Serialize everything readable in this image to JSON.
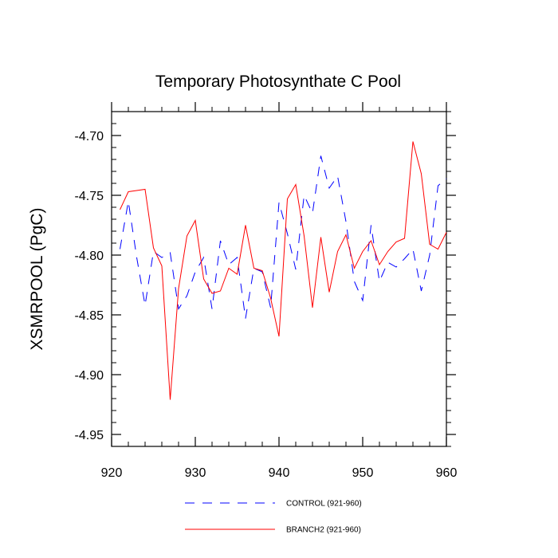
{
  "chart_data": {
    "type": "line",
    "title": "Temporary Photosynthate C Pool",
    "xlabel": "",
    "ylabel": "XSMRPOOL  (PgC)",
    "xlim": [
      920,
      960
    ],
    "ylim": [
      -4.96,
      -4.68
    ],
    "xticks": [
      920,
      930,
      940,
      950,
      960
    ],
    "xtick_labels": [
      "920",
      "930",
      "940",
      "950",
      "960"
    ],
    "yticks": [
      -4.95,
      -4.9,
      -4.85,
      -4.8,
      -4.75,
      -4.7
    ],
    "ytick_labels": [
      "-4.95",
      "-4.90",
      "-4.85",
      "-4.80",
      "-4.75",
      "-4.70"
    ],
    "legend_position": "bottom",
    "x": [
      921,
      922,
      923,
      924,
      925,
      926,
      927,
      928,
      929,
      930,
      931,
      932,
      933,
      934,
      935,
      936,
      937,
      938,
      939,
      940,
      941,
      942,
      943,
      944,
      945,
      946,
      947,
      948,
      949,
      950,
      951,
      952,
      953,
      954,
      955,
      956,
      957,
      958,
      959,
      960
    ],
    "series": [
      {
        "name": "CONTROL (921-960)",
        "color": "#0000ff",
        "style": "dashed",
        "values": [
          -4.795,
          -4.755,
          -4.802,
          -4.842,
          -4.797,
          -4.802,
          -4.798,
          -4.845,
          -4.834,
          -4.814,
          -4.802,
          -4.845,
          -4.788,
          -4.808,
          -4.802,
          -4.853,
          -4.811,
          -4.814,
          -4.844,
          -4.756,
          -4.782,
          -4.812,
          -4.75,
          -4.765,
          -4.717,
          -4.744,
          -4.734,
          -4.772,
          -4.822,
          -4.838,
          -4.775,
          -4.822,
          -4.806,
          -4.81,
          -4.803,
          -4.795,
          -4.83,
          -4.8,
          -4.742,
          -4.736
        ]
      },
      {
        "name": "BRANCH2 (921-960)",
        "color": "#ff0000",
        "style": "solid",
        "values": [
          -4.762,
          -4.747,
          -4.746,
          -4.745,
          -4.794,
          -4.809,
          -4.921,
          -4.828,
          -4.784,
          -4.771,
          -4.82,
          -4.832,
          -4.83,
          -4.811,
          -4.816,
          -4.775,
          -4.811,
          -4.813,
          -4.836,
          -4.868,
          -4.753,
          -4.741,
          -4.784,
          -4.844,
          -4.785,
          -4.831,
          -4.797,
          -4.783,
          -4.811,
          -4.797,
          -4.788,
          -4.808,
          -4.797,
          -4.789,
          -4.786,
          -4.705,
          -4.732,
          -4.791,
          -4.795,
          -4.781
        ]
      }
    ]
  }
}
